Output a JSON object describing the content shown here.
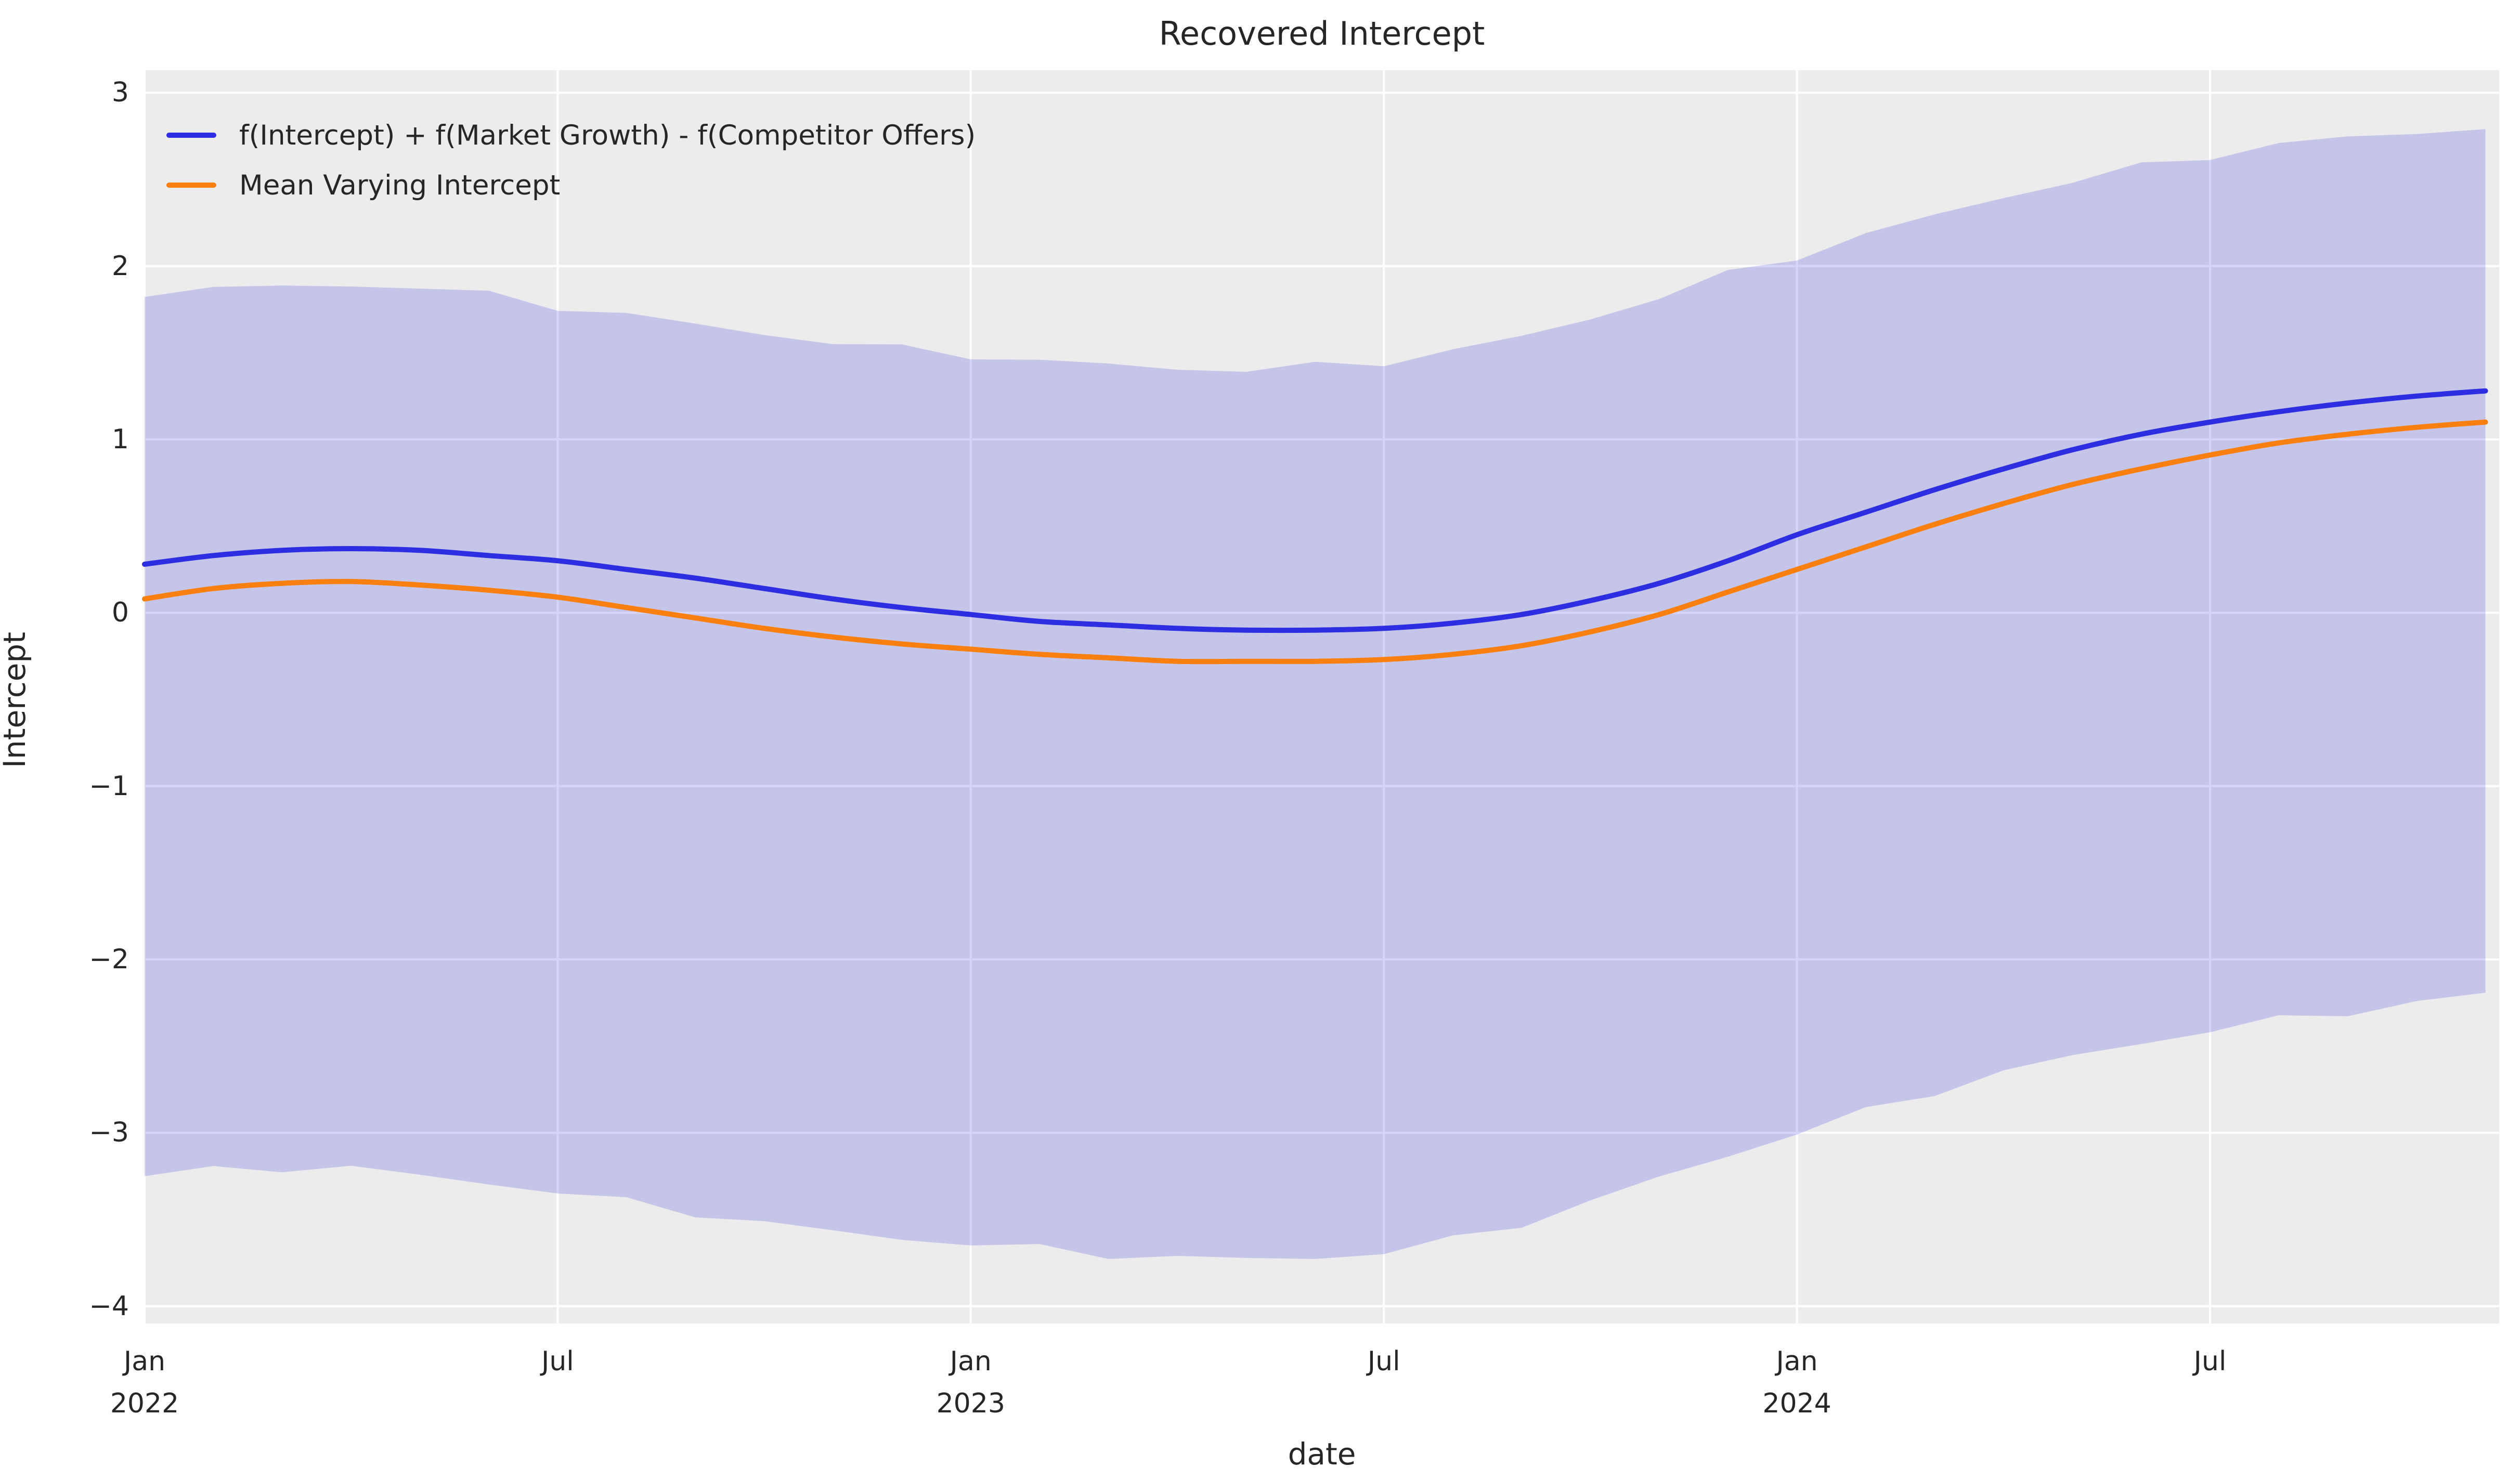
{
  "chart_data": {
    "type": "line",
    "title": "Recovered Intercept",
    "xlabel": "date",
    "ylabel": "Intercept",
    "plot_background": "#ececec",
    "figure_background": "#ffffff",
    "grid_color": "#ffffff",
    "text_color": "#262626",
    "grid": "on",
    "ylim": [
      -4.1,
      3.13
    ],
    "xlim_months": [
      0,
      34.2
    ],
    "x_months": [
      "2022-01",
      "2022-02",
      "2022-03",
      "2022-04",
      "2022-05",
      "2022-06",
      "2022-07",
      "2022-08",
      "2022-09",
      "2022-10",
      "2022-11",
      "2022-12",
      "2023-01",
      "2023-02",
      "2023-03",
      "2023-04",
      "2023-05",
      "2023-06",
      "2023-07",
      "2023-08",
      "2023-09",
      "2023-10",
      "2023-11",
      "2023-12",
      "2024-01",
      "2024-02",
      "2024-03",
      "2024-04",
      "2024-05",
      "2024-06",
      "2024-07",
      "2024-08",
      "2024-09",
      "2024-10",
      "2024-11"
    ],
    "y_ticks": [
      {
        "value": 3,
        "label": "3"
      },
      {
        "value": 2,
        "label": "2"
      },
      {
        "value": 1,
        "label": "1"
      },
      {
        "value": 0,
        "label": "0"
      },
      {
        "value": -1,
        "label": "−1"
      },
      {
        "value": -2,
        "label": "−2"
      },
      {
        "value": -3,
        "label": "−3"
      },
      {
        "value": -4,
        "label": "−4"
      }
    ],
    "x_ticks": [
      {
        "month_index": 0,
        "line1": "Jan",
        "line2": "2022"
      },
      {
        "month_index": 6,
        "line1": "Jul",
        "line2": ""
      },
      {
        "month_index": 12,
        "line1": "Jan",
        "line2": "2023"
      },
      {
        "month_index": 18,
        "line1": "Jul",
        "line2": ""
      },
      {
        "month_index": 24,
        "line1": "Jan",
        "line2": "2024"
      },
      {
        "month_index": 30,
        "line1": "Jul",
        "line2": ""
      }
    ],
    "series": [
      {
        "name": "f(Intercept) + f(Market Growth) - f(Competitor Offers)",
        "color": "#2d2de1",
        "line_width": 10,
        "values": [
          0.28,
          0.33,
          0.36,
          0.37,
          0.36,
          0.33,
          0.3,
          0.25,
          0.2,
          0.14,
          0.08,
          0.03,
          -0.01,
          -0.05,
          -0.07,
          -0.09,
          -0.1,
          -0.1,
          -0.09,
          -0.06,
          -0.01,
          0.07,
          0.17,
          0.3,
          0.45,
          0.58,
          0.71,
          0.83,
          0.94,
          1.03,
          1.1,
          1.16,
          1.21,
          1.25,
          1.28
        ]
      },
      {
        "name": "Mean Varying Intercept",
        "color": "#f9800e",
        "line_width": 10,
        "values": [
          0.08,
          0.14,
          0.17,
          0.18,
          0.16,
          0.13,
          0.09,
          0.03,
          -0.03,
          -0.09,
          -0.14,
          -0.18,
          -0.21,
          -0.24,
          -0.26,
          -0.28,
          -0.28,
          -0.28,
          -0.27,
          -0.24,
          -0.19,
          -0.11,
          -0.01,
          0.12,
          0.25,
          0.38,
          0.51,
          0.63,
          0.74,
          0.83,
          0.91,
          0.98,
          1.03,
          1.07,
          1.1
        ]
      }
    ],
    "band": {
      "name": "posterior uncertainty band",
      "fill_color": "rgba(45,45,225,0.2)",
      "upper": [
        1.84,
        1.88,
        1.87,
        1.9,
        1.87,
        1.84,
        1.76,
        1.73,
        1.65,
        1.62,
        1.55,
        1.53,
        1.48,
        1.46,
        1.42,
        1.42,
        1.39,
        1.43,
        1.44,
        1.52,
        1.58,
        1.71,
        1.81,
        1.96,
        2.05,
        2.19,
        2.28,
        2.41,
        2.48,
        2.58,
        2.63,
        2.71,
        2.73,
        2.78,
        2.79
      ],
      "lower": [
        -3.25,
        -3.21,
        -3.21,
        -3.19,
        -3.26,
        -3.28,
        -3.35,
        -3.39,
        -3.47,
        -3.51,
        -3.58,
        -3.6,
        -3.65,
        -3.66,
        -3.71,
        -3.71,
        -3.74,
        -3.71,
        -3.7,
        -3.61,
        -3.53,
        -3.39,
        -3.27,
        -3.12,
        -3.01,
        -2.87,
        -2.77,
        -2.64,
        -2.57,
        -2.47,
        -2.42,
        -2.34,
        -2.31,
        -2.24,
        -2.21
      ]
    },
    "legend": {
      "position": "upper-left",
      "entries": [
        {
          "label": "f(Intercept) + f(Market Growth) - f(Competitor Offers)",
          "color": "#2d2de1"
        },
        {
          "label": "Mean Varying Intercept",
          "color": "#f9800e"
        }
      ]
    }
  }
}
